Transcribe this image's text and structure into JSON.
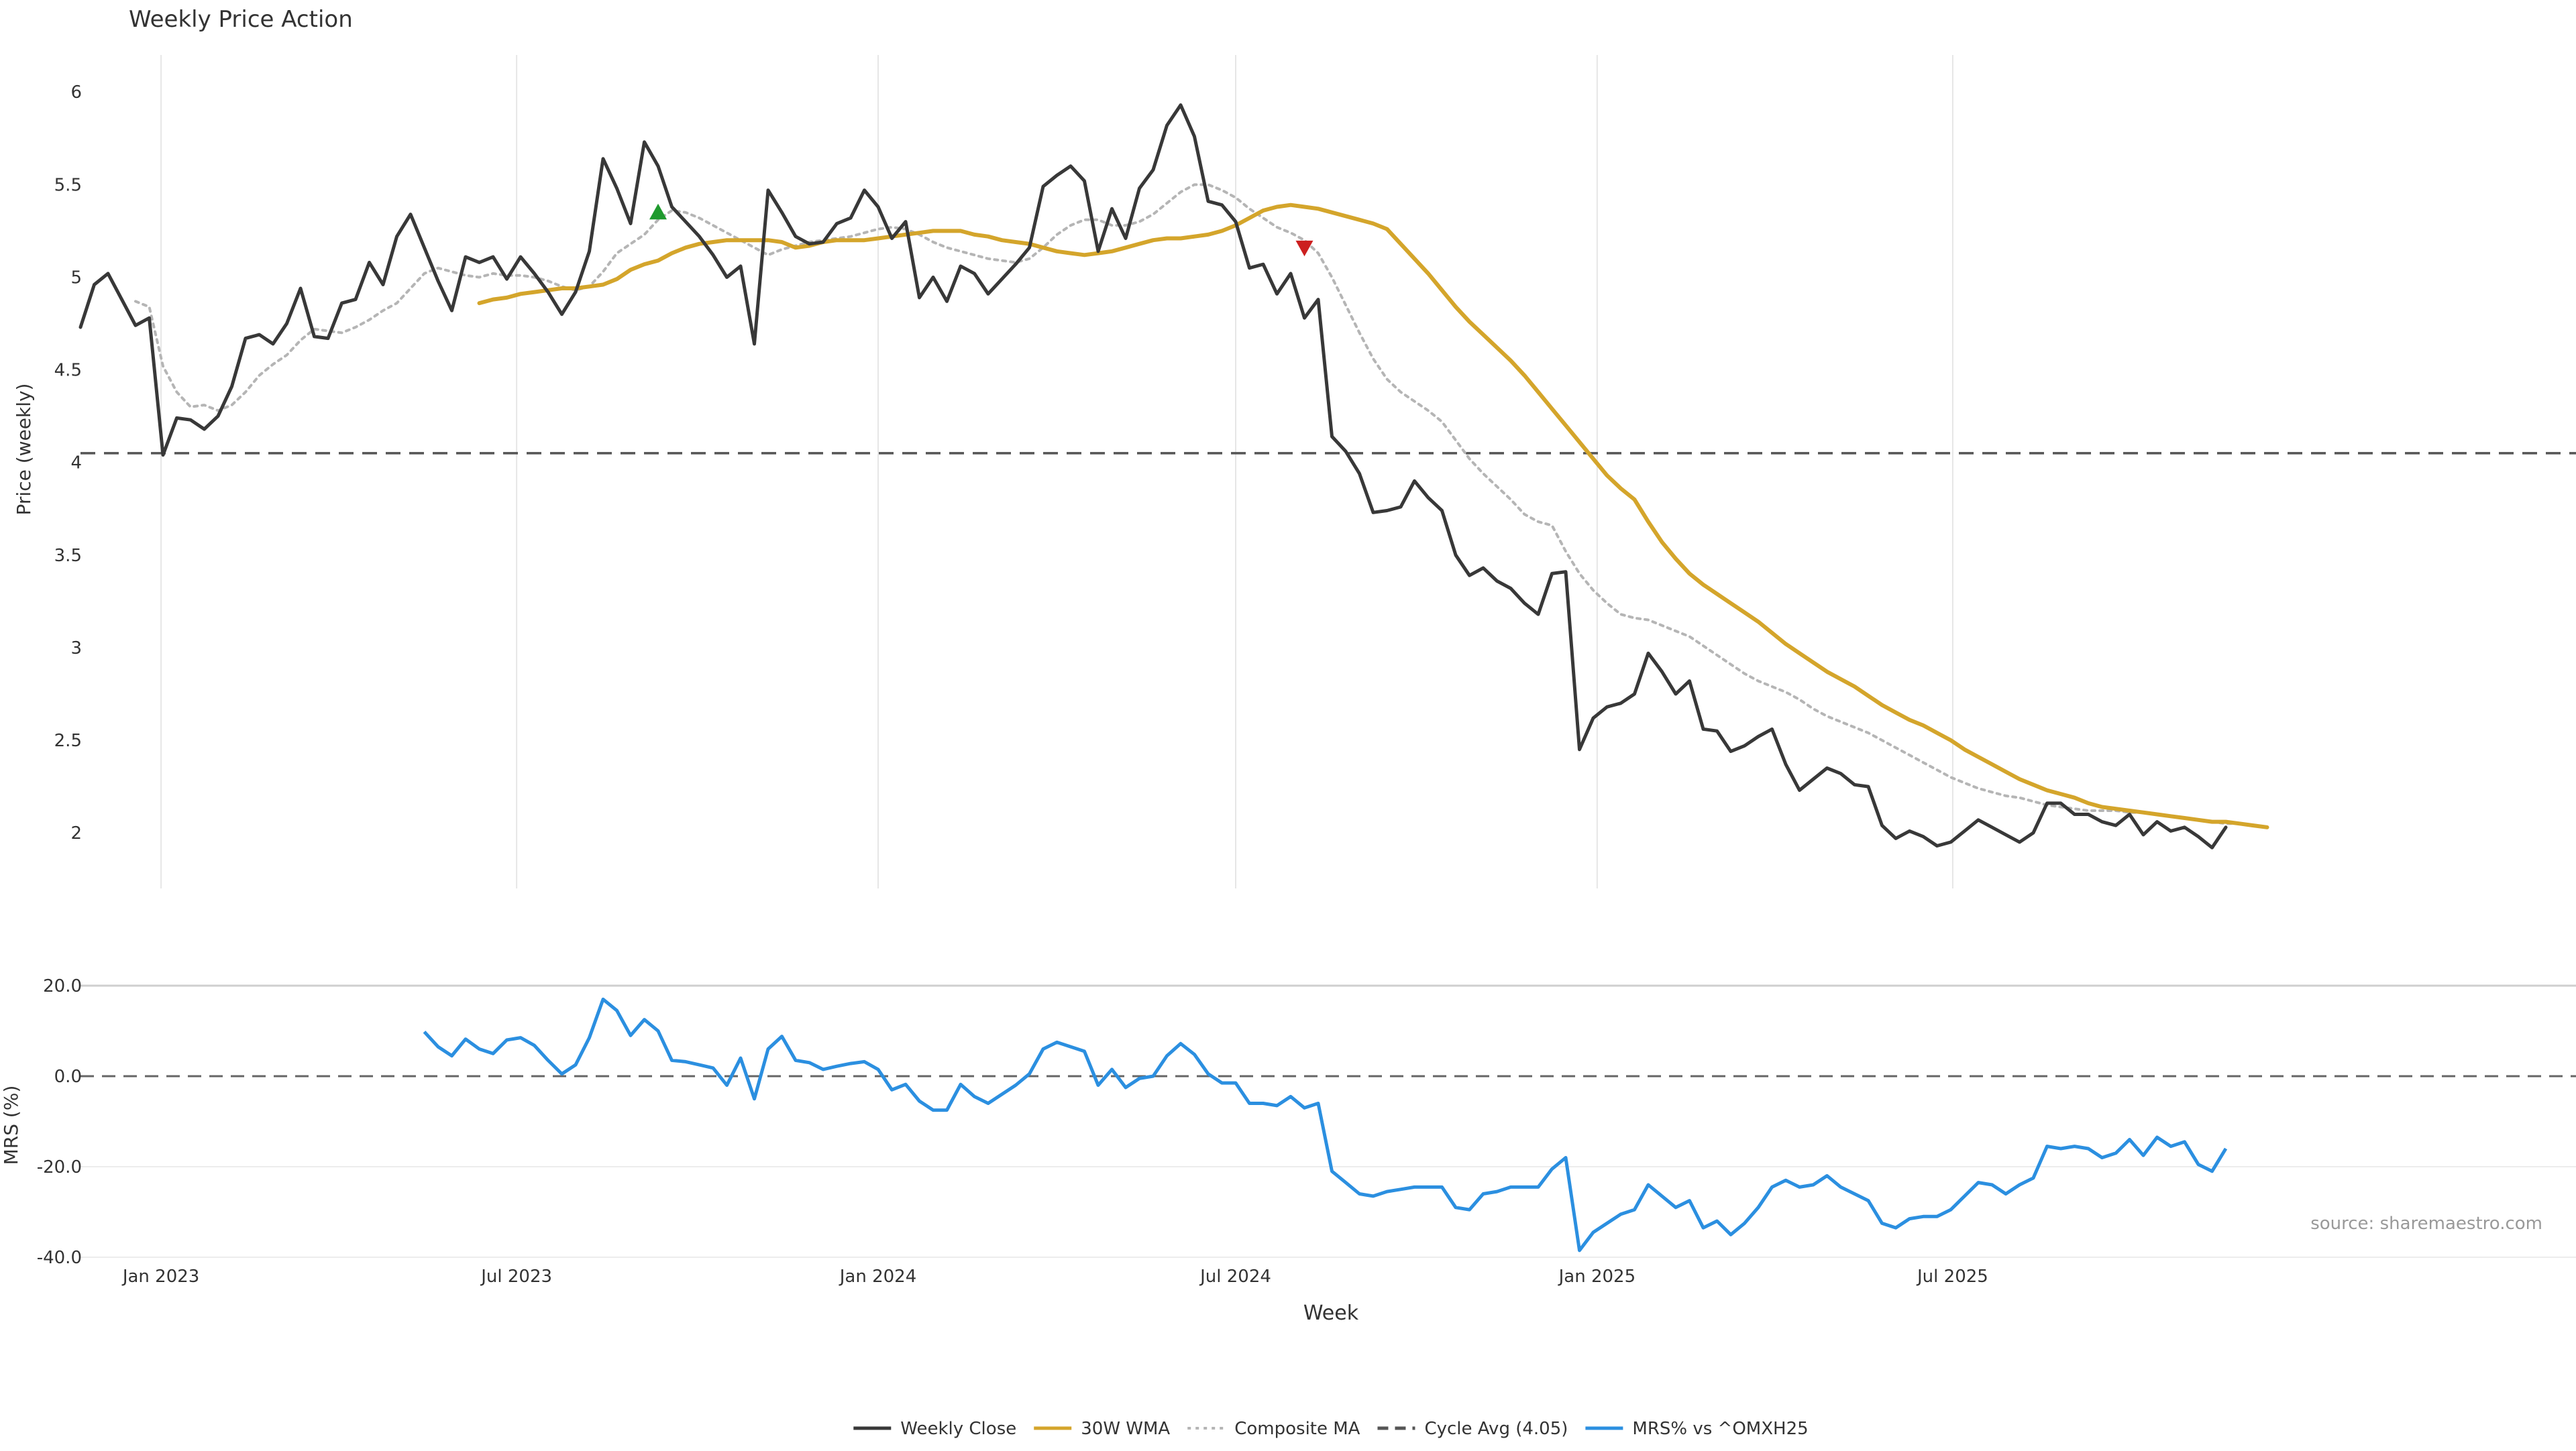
{
  "title": "Weekly Price Action",
  "source_note": "source: sharemaestro.com",
  "colors": {
    "close": "#383838",
    "wma": "#d4a52b",
    "composite": "#b5b5b5",
    "cycle": "#555555",
    "mrs": "#2b8fe0",
    "buy_marker": "#1f9a2e",
    "sell_marker": "#cc1f1f",
    "grid": "#e6e6e6"
  },
  "chart_data": [
    {
      "type": "line",
      "panel": "price",
      "title": "Weekly Price Action",
      "ylabel": "Price (weekly)",
      "xlabel": "Week",
      "ylim": [
        1.7,
        6.2
      ],
      "yticks": [
        2,
        2.5,
        3,
        3.5,
        4,
        4.5,
        5,
        5.5,
        6
      ],
      "x_start": "2022-11-21",
      "x_step_days": 7,
      "xticks": [
        {
          "date": "2023-01-01",
          "label": "Jan 2023"
        },
        {
          "date": "2023-07-01",
          "label": "Jul 2023"
        },
        {
          "date": "2024-01-01",
          "label": "Jan 2024"
        },
        {
          "date": "2024-07-01",
          "label": "Jul 2024"
        },
        {
          "date": "2025-01-01",
          "label": "Jan 2025"
        },
        {
          "date": "2025-07-01",
          "label": "Jul 2025"
        }
      ],
      "grid": "vertical",
      "series": [
        {
          "name": "Weekly Close",
          "values": [
            4.73,
            4.96,
            5.02,
            4.88,
            4.74,
            4.78,
            4.04,
            4.24,
            4.23,
            4.18,
            4.25,
            4.41,
            4.67,
            4.69,
            4.64,
            4.75,
            4.94,
            4.68,
            4.67,
            4.86,
            4.88,
            5.08,
            4.96,
            5.22,
            5.34,
            5.16,
            4.98,
            4.82,
            5.11,
            5.08,
            5.11,
            4.99,
            5.11,
            5.02,
            4.92,
            4.8,
            4.92,
            5.14,
            5.64,
            5.48,
            5.29,
            5.73,
            5.6,
            5.38,
            5.3,
            5.22,
            5.12,
            5.0,
            5.06,
            4.64,
            5.47,
            5.35,
            5.22,
            5.18,
            5.19,
            5.29,
            5.32,
            5.47,
            5.38,
            5.21,
            5.3,
            4.89,
            5.0,
            4.87,
            5.06,
            5.02,
            4.91,
            4.99,
            5.07,
            5.16,
            5.49,
            5.55,
            5.6,
            5.52,
            5.14,
            5.37,
            5.21,
            5.48,
            5.58,
            5.82,
            5.93,
            5.76,
            5.41,
            5.39,
            5.3,
            5.05,
            5.07,
            4.91,
            5.02,
            4.78,
            4.88,
            4.14,
            4.06,
            3.94,
            3.73,
            3.74,
            3.76,
            3.9,
            3.81,
            3.74,
            3.5,
            3.39,
            3.43,
            3.36,
            3.32,
            3.24,
            3.18,
            3.4,
            3.41,
            2.45,
            2.62,
            2.68,
            2.7,
            2.75,
            2.97,
            2.87,
            2.75,
            2.82,
            2.56,
            2.55,
            2.44,
            2.47,
            2.52,
            2.56,
            2.37,
            2.23,
            2.29,
            2.35,
            2.32,
            2.26,
            2.25,
            2.04,
            1.97,
            2.01,
            1.98,
            1.93,
            1.95,
            2.01,
            2.07,
            2.03,
            1.99,
            1.95,
            2.0,
            2.16,
            2.16,
            2.1,
            2.1,
            2.06,
            2.04,
            2.1,
            1.99,
            2.06,
            2.01,
            2.03,
            1.98,
            1.92,
            2.03
          ]
        },
        {
          "name": "30W WMA",
          "x_offset": 29,
          "values": [
            4.86,
            4.88,
            4.89,
            4.91,
            4.92,
            4.93,
            4.94,
            4.94,
            4.95,
            4.96,
            4.99,
            5.04,
            5.07,
            5.09,
            5.13,
            5.16,
            5.18,
            5.19,
            5.2,
            5.2,
            5.2,
            5.2,
            5.19,
            5.16,
            5.17,
            5.19,
            5.2,
            5.2,
            5.2,
            5.21,
            5.22,
            5.23,
            5.24,
            5.25,
            5.25,
            5.25,
            5.23,
            5.22,
            5.2,
            5.19,
            5.18,
            5.16,
            5.14,
            5.13,
            5.12,
            5.13,
            5.14,
            5.16,
            5.18,
            5.2,
            5.21,
            5.21,
            5.22,
            5.23,
            5.25,
            5.28,
            5.32,
            5.36,
            5.38,
            5.39,
            5.38,
            5.37,
            5.35,
            5.33,
            5.31,
            5.29,
            5.26,
            5.18,
            5.1,
            5.02,
            4.93,
            4.84,
            4.76,
            4.69,
            4.62,
            4.55,
            4.47,
            4.38,
            4.29,
            4.2,
            4.11,
            4.02,
            3.93,
            3.86,
            3.8,
            3.68,
            3.57,
            3.48,
            3.4,
            3.34,
            3.29,
            3.24,
            3.19,
            3.14,
            3.08,
            3.02,
            2.97,
            2.92,
            2.87,
            2.83,
            2.79,
            2.74,
            2.69,
            2.65,
            2.61,
            2.58,
            2.54,
            2.5,
            2.45,
            2.41,
            2.37,
            2.33,
            2.29,
            2.26,
            2.23,
            2.21,
            2.19,
            2.16,
            2.14,
            2.13,
            2.12,
            2.11,
            2.1,
            2.09,
            2.08,
            2.07,
            2.06,
            2.06,
            2.05,
            2.04,
            2.03
          ]
        },
        {
          "name": "Composite MA",
          "x_offset": 4,
          "values": [
            4.87,
            4.84,
            4.52,
            4.38,
            4.3,
            4.31,
            4.28,
            4.31,
            4.38,
            4.47,
            4.53,
            4.58,
            4.66,
            4.72,
            4.71,
            4.7,
            4.73,
            4.77,
            4.82,
            4.86,
            4.94,
            5.02,
            5.05,
            5.03,
            5.01,
            5.0,
            5.02,
            5.01,
            5.01,
            5.0,
            4.98,
            4.95,
            4.93,
            4.95,
            5.03,
            5.13,
            5.18,
            5.23,
            5.31,
            5.36,
            5.35,
            5.32,
            5.28,
            5.24,
            5.2,
            5.16,
            5.12,
            5.15,
            5.17,
            5.19,
            5.2,
            5.21,
            5.22,
            5.24,
            5.26,
            5.27,
            5.26,
            5.23,
            5.19,
            5.16,
            5.14,
            5.12,
            5.1,
            5.09,
            5.08,
            5.1,
            5.16,
            5.23,
            5.28,
            5.31,
            5.31,
            5.28,
            5.28,
            5.3,
            5.34,
            5.4,
            5.46,
            5.5,
            5.5,
            5.47,
            5.43,
            5.37,
            5.32,
            5.27,
            5.24,
            5.2,
            5.13,
            5.0,
            4.85,
            4.7,
            4.56,
            4.45,
            4.38,
            4.33,
            4.28,
            4.22,
            4.12,
            4.02,
            3.94,
            3.87,
            3.8,
            3.72,
            3.68,
            3.66,
            3.52,
            3.4,
            3.31,
            3.24,
            3.18,
            3.16,
            3.15,
            3.12,
            3.09,
            3.06,
            3.01,
            2.96,
            2.91,
            2.86,
            2.82,
            2.79,
            2.76,
            2.72,
            2.67,
            2.63,
            2.6,
            2.57,
            2.54,
            2.5,
            2.46,
            2.42,
            2.38,
            2.34,
            2.3,
            2.27,
            2.24,
            2.22,
            2.2,
            2.19,
            2.17,
            2.15,
            2.14,
            2.13,
            2.12,
            2.12,
            2.12,
            2.11,
            2.11,
            2.1,
            2.09,
            2.08,
            2.07,
            2.06,
            2.05,
            2.05,
            2.04
          ]
        },
        {
          "name": "Cycle Avg (4.05)",
          "type": "hline",
          "value": 4.05
        }
      ],
      "markers": [
        {
          "type": "buy",
          "week_index": 42,
          "value": 5.35
        },
        {
          "type": "sell",
          "week_index": 89,
          "value": 5.16
        }
      ]
    },
    {
      "type": "line",
      "panel": "mrs",
      "ylabel": "MRS (%)",
      "ylim": [
        -40,
        20
      ],
      "yticks": [
        {
          "value": 20,
          "label": "20.0"
        },
        {
          "value": 0,
          "label": "0.0"
        },
        {
          "value": -20,
          "label": "-20.0"
        },
        {
          "value": -40,
          "label": "-40.0"
        }
      ],
      "zero_line": 0,
      "series": [
        {
          "name": "MRS% vs ^OMXH25",
          "x_offset": 25,
          "values": [
            9.8,
            6.5,
            4.5,
            8.2,
            6.0,
            5.0,
            8.0,
            8.5,
            6.8,
            3.5,
            0.5,
            2.5,
            8.5,
            17.0,
            14.5,
            9.0,
            12.5,
            10.0,
            3.5,
            3.2,
            2.5,
            1.8,
            -2.0,
            4.0,
            -5.0,
            6.0,
            8.8,
            3.5,
            3.0,
            1.5,
            2.2,
            2.8,
            3.2,
            1.5,
            -3.0,
            -1.8,
            -5.5,
            -7.5,
            -7.5,
            -1.8,
            -4.5,
            -6.0,
            -4.0,
            -2.0,
            0.5,
            6.0,
            7.5,
            6.5,
            5.5,
            -2.0,
            1.5,
            -2.5,
            -0.5,
            0.0,
            4.5,
            7.2,
            4.8,
            0.5,
            -1.5,
            -1.5,
            -6.0,
            -6.0,
            -6.5,
            -4.5,
            -7.0,
            -6.0,
            -21.0,
            -23.5,
            -26.0,
            -26.5,
            -25.5,
            -25.0,
            -24.5,
            -24.5,
            -24.5,
            -29.0,
            -29.5,
            -26.0,
            -25.5,
            -24.5,
            -24.5,
            -24.5,
            -20.5,
            -18.0,
            -38.5,
            -34.5,
            -32.5,
            -30.5,
            -29.5,
            -24.0,
            -26.5,
            -29.0,
            -27.5,
            -33.5,
            -32.0,
            -35.0,
            -32.5,
            -29.0,
            -24.5,
            -23.0,
            -24.5,
            -24.0,
            -22.0,
            -24.5,
            -26.0,
            -27.5,
            -32.5,
            -33.5,
            -31.5,
            -31.0,
            -31.0,
            -29.5,
            -26.5,
            -23.5,
            -24.0,
            -26.0,
            -24.0,
            -22.5,
            -15.5,
            -16.0,
            -15.5,
            -16.0,
            -18.0,
            -17.0,
            -14.0,
            -17.5,
            -13.5,
            -15.5,
            -14.5,
            -19.5,
            -21.0,
            -16.0
          ]
        }
      ]
    }
  ],
  "legend": {
    "placement": "bottom-center",
    "items": [
      {
        "label": "Weekly Close",
        "style": "solid",
        "color": "#383838"
      },
      {
        "label": "30W WMA",
        "style": "solid",
        "color": "#d4a52b"
      },
      {
        "label": "Composite MA",
        "style": "dotted",
        "color": "#b5b5b5"
      },
      {
        "label": "Cycle Avg (4.05)",
        "style": "dashed",
        "color": "#555555"
      },
      {
        "label": "MRS% vs ^OMXH25",
        "style": "solid",
        "color": "#2b8fe0"
      }
    ]
  }
}
